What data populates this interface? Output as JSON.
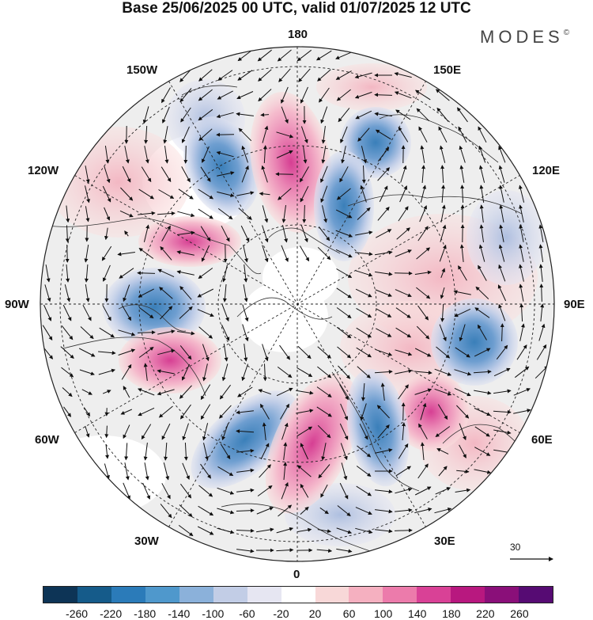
{
  "title": "Base 25/06/2025 00 UTC, valid 01/07/2025 12 UTC",
  "brand": {
    "name": "MODES",
    "mark": "©"
  },
  "longitude_labels": {
    "top": "180",
    "bottom": "0",
    "left": "90W",
    "right": "90E",
    "upper_left_1": "150W",
    "upper_left_2": "120W",
    "lower_left_1": "60W",
    "lower_left_2": "30W",
    "upper_right_1": "150E",
    "upper_right_2": "120E",
    "lower_right_1": "60E",
    "lower_right_2": "30E"
  },
  "vector_scale": {
    "label": "30"
  },
  "colorbar": {
    "colors": [
      "#0d3456",
      "#155b8a",
      "#2b7bb9",
      "#4f98cc",
      "#8bb1da",
      "#c2cde6",
      "#e6e6f2",
      "#ffffff",
      "#f8d8d8",
      "#f5b0c0",
      "#ec7bab",
      "#d94196",
      "#b8187f",
      "#8a0f79",
      "#560b73"
    ],
    "tick_labels": [
      "-260",
      "-220",
      "-180",
      "-140",
      "-100",
      "-60",
      "-20",
      "20",
      "60",
      "100",
      "140",
      "180",
      "220",
      "260"
    ]
  },
  "anomaly_colors": {
    "negative": "#3c86c3",
    "positive": "#e0559e",
    "neutral": "#eeeeee"
  }
}
